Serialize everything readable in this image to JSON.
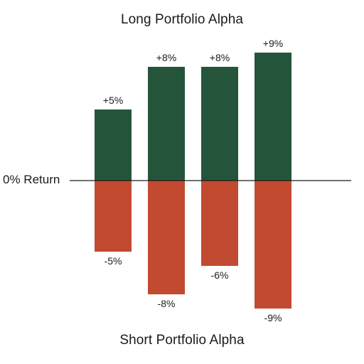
{
  "chart_data": {
    "type": "bar",
    "title_top": "Long Portfolio Alpha",
    "title_bottom": "Short Portfolio Alpha",
    "baseline_label": "0% Return",
    "series": [
      {
        "name": "Long",
        "values": [
          5,
          8,
          8,
          9
        ],
        "labels": [
          "+5%",
          "+8%",
          "+8%",
          "+9%"
        ],
        "color": "#24553a"
      },
      {
        "name": "Short",
        "values": [
          -5,
          -8,
          -6,
          -9
        ],
        "labels": [
          "-5%",
          "-8%",
          "-6%",
          "-9%"
        ],
        "color": "#c24a31"
      }
    ],
    "ylim": [
      -9,
      9
    ],
    "grid": false
  }
}
